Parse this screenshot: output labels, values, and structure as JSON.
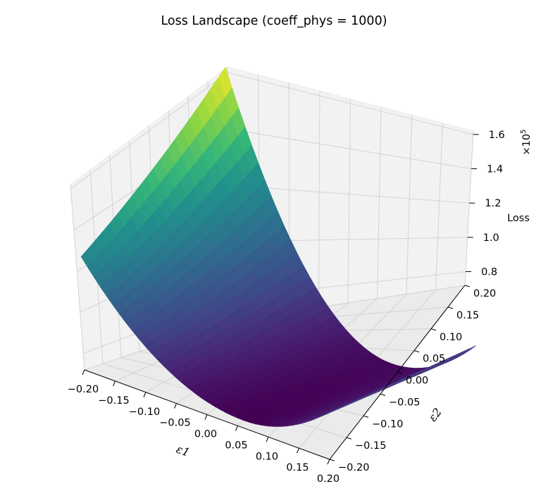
{
  "chart_data": {
    "type": "surface3d",
    "title": "Loss Landscape (coeff_phys = 1000)",
    "xlabel": "ε1",
    "ylabel": "ε2",
    "zlabel": "Loss",
    "z_multiplier": "×10",
    "z_multiplier_exp": "5",
    "x_ticks": [
      "−0.20",
      "−0.15",
      "−0.10",
      "−0.05",
      "0.00",
      "0.05",
      "0.10",
      "0.15",
      "0.20"
    ],
    "y_ticks": [
      "−0.20",
      "−0.15",
      "−0.10",
      "−0.05",
      "0.00",
      "0.05",
      "0.10",
      "0.15",
      "0.20"
    ],
    "z_ticks": [
      "0.8",
      "1.0",
      "1.2",
      "1.4",
      "1.6"
    ],
    "x_range": [
      -0.2,
      0.2
    ],
    "y_range": [
      -0.2,
      0.2
    ],
    "z_range": [
      0.72,
      1.62
    ],
    "colormap": "viridis",
    "surface_corners": {
      "x_-0.2_y_-0.2": 1.27,
      "x_-0.2_y_0.2": 1.62,
      "x_0.2_y_-0.2": 0.98,
      "x_0.2_y_0.2": 0.98
    },
    "minimum": {
      "x": 0.06,
      "y": -0.2,
      "z": 0.76
    },
    "grid": true
  }
}
